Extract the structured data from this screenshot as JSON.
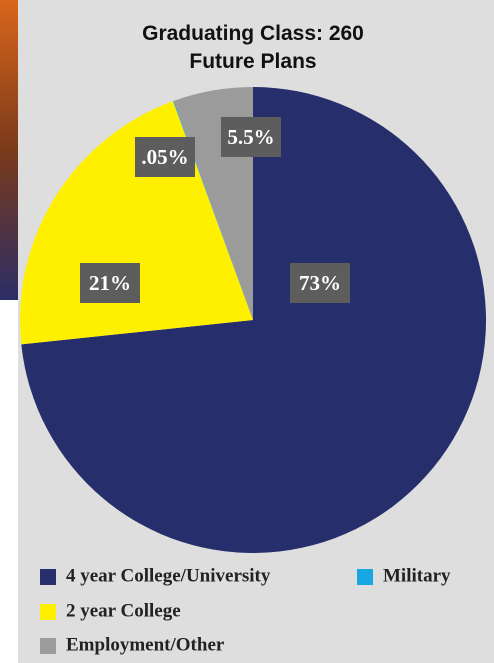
{
  "chart_data": {
    "type": "pie",
    "title": "Graduating Class: 260",
    "subtitle": "Future Plans",
    "categories": [
      "4 year College/University",
      "2 year College",
      "Military",
      "Employment/Other"
    ],
    "values": [
      73,
      21,
      0.05,
      5.5
    ],
    "value_labels": [
      "73%",
      "21%",
      ".05%",
      "5.5%"
    ],
    "colors": [
      "#262e6c",
      "#fff000",
      "#17a8e3",
      "#9b9b9b"
    ]
  }
}
